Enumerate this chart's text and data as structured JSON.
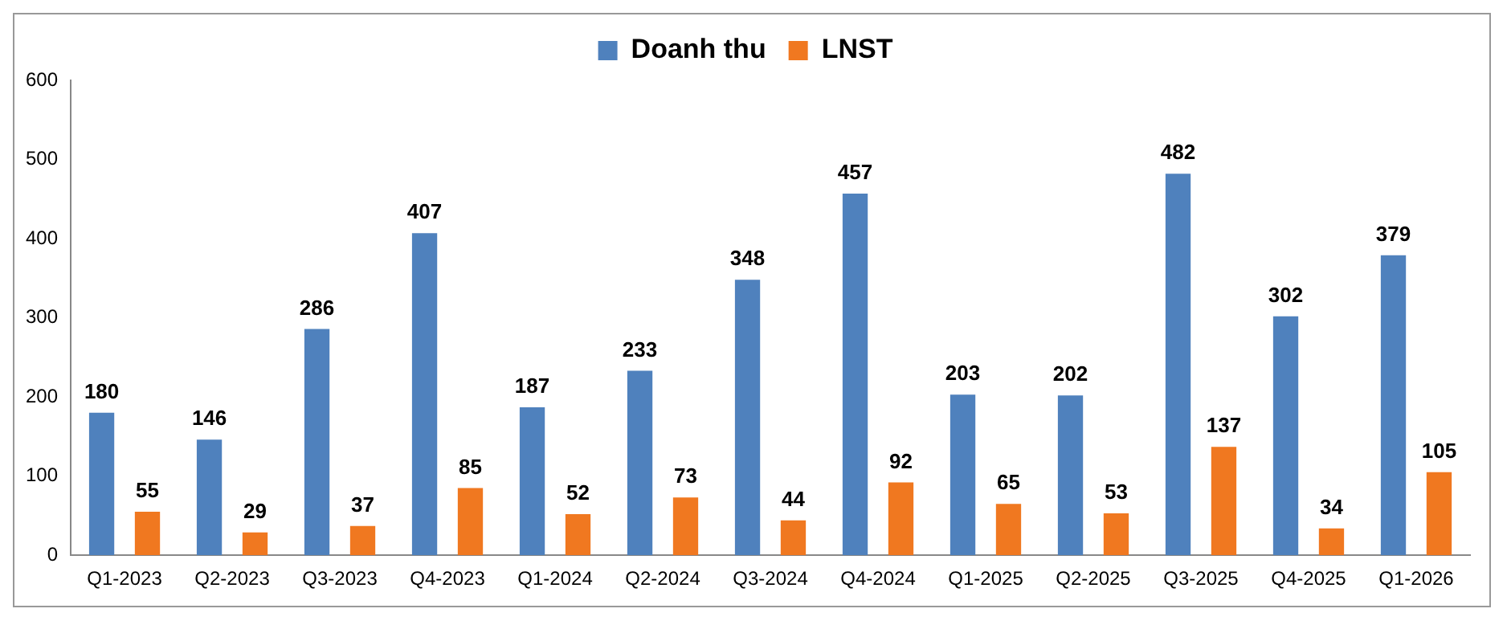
{
  "chart_data": {
    "type": "bar",
    "categories": [
      "Q1-2023",
      "Q2-2023",
      "Q3-2023",
      "Q4-2023",
      "Q1-2024",
      "Q2-2024",
      "Q3-2024",
      "Q4-2024",
      "Q1-2025",
      "Q2-2025",
      "Q3-2025",
      "Q4-2025",
      "Q1-2026"
    ],
    "series": [
      {
        "name": "Doanh thu",
        "color": "#4f81bd",
        "values": [
          180,
          146,
          286,
          407,
          187,
          233,
          348,
          457,
          203,
          202,
          482,
          302,
          379
        ]
      },
      {
        "name": "LNST",
        "color": "#f07820",
        "values": [
          55,
          29,
          37,
          85,
          52,
          73,
          44,
          92,
          65,
          53,
          137,
          34,
          105
        ]
      }
    ],
    "ylim": [
      0,
      600
    ],
    "yticks": [
      0,
      100,
      200,
      300,
      400,
      500,
      600
    ],
    "grid": false,
    "legend": "top",
    "data_labels": true
  }
}
